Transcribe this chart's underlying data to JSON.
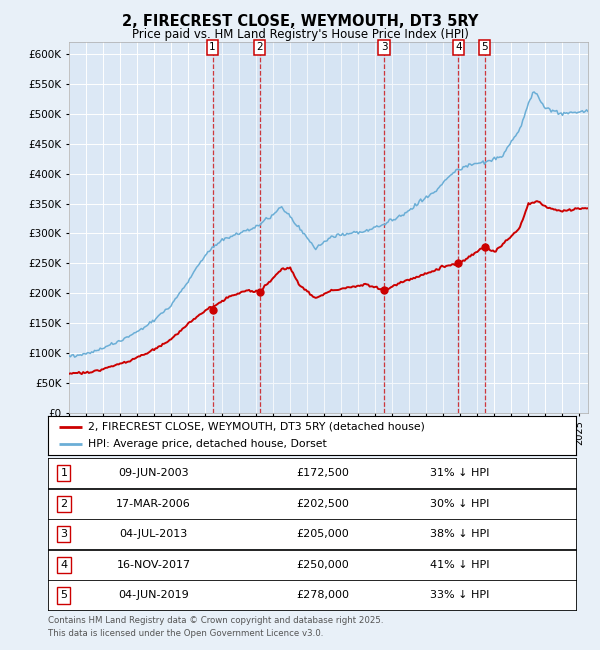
{
  "title": "2, FIRECREST CLOSE, WEYMOUTH, DT3 5RY",
  "subtitle": "Price paid vs. HM Land Registry's House Price Index (HPI)",
  "bg_color": "#e8f0f8",
  "plot_bg_color": "#dce8f5",
  "grid_color": "#ffffff",
  "hpi_color": "#6baed6",
  "price_color": "#cc0000",
  "marker_color": "#cc0000",
  "ylim": [
    0,
    620000
  ],
  "yticks": [
    0,
    50000,
    100000,
    150000,
    200000,
    250000,
    300000,
    350000,
    400000,
    450000,
    500000,
    550000,
    600000
  ],
  "ytick_labels": [
    "£0",
    "£50K",
    "£100K",
    "£150K",
    "£200K",
    "£250K",
    "£300K",
    "£350K",
    "£400K",
    "£450K",
    "£500K",
    "£550K",
    "£600K"
  ],
  "transactions": [
    {
      "num": 1,
      "date": "09-JUN-2003",
      "year": 2003.44,
      "price": 172500,
      "label": "09-JUN-2003",
      "price_str": "£172,500",
      "hpi_str": "31% ↓ HPI"
    },
    {
      "num": 2,
      "date": "17-MAR-2006",
      "year": 2006.21,
      "price": 202500,
      "label": "17-MAR-2006",
      "price_str": "£202,500",
      "hpi_str": "30% ↓ HPI"
    },
    {
      "num": 3,
      "date": "04-JUL-2013",
      "year": 2013.51,
      "price": 205000,
      "label": "04-JUL-2013",
      "price_str": "£205,000",
      "hpi_str": "38% ↓ HPI"
    },
    {
      "num": 4,
      "date": "16-NOV-2017",
      "year": 2017.88,
      "price": 250000,
      "label": "16-NOV-2017",
      "price_str": "£250,000",
      "hpi_str": "41% ↓ HPI"
    },
    {
      "num": 5,
      "date": "04-JUN-2019",
      "year": 2019.42,
      "price": 278000,
      "label": "04-JUN-2019",
      "price_str": "£278,000",
      "hpi_str": "33% ↓ HPI"
    }
  ],
  "legend_entries": [
    "2, FIRECREST CLOSE, WEYMOUTH, DT3 5RY (detached house)",
    "HPI: Average price, detached house, Dorset"
  ],
  "footnote1": "Contains HM Land Registry data © Crown copyright and database right 2025.",
  "footnote2": "This data is licensed under the Open Government Licence v3.0.",
  "xlim_start": 1995.0,
  "xlim_end": 2025.5
}
